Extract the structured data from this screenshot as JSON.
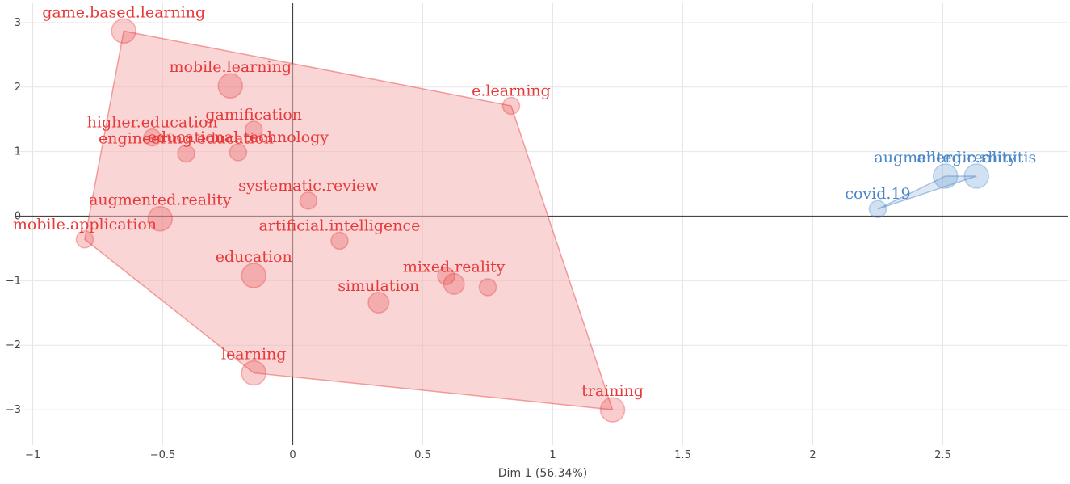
{
  "chart_data": {
    "type": "scatter",
    "xlabel": "Dim 1 (56.34%)",
    "ylabel": "",
    "xlim": [
      -1.07,
      2.98
    ],
    "ylim": [
      -3.55,
      3.3
    ],
    "x_ticks": [
      -1,
      -0.5,
      0,
      0.5,
      1,
      1.5,
      2,
      2.5
    ],
    "x_tick_labels": [
      "−1",
      "−0.5",
      "0",
      "0.5",
      "1",
      "1.5",
      "2",
      "2.5"
    ],
    "y_ticks": [
      -3,
      -2,
      -1,
      0,
      1,
      2,
      3
    ],
    "y_tick_labels": [
      "−3",
      "−2",
      "−1",
      "0",
      "1",
      "2",
      "3"
    ],
    "grid": true,
    "series": [
      {
        "color": "#e8393a",
        "fill": "#f4b3b3",
        "hull": [
          "game.based.learning",
          "e.learning",
          "training",
          "learning",
          "mobile.application"
        ],
        "points": [
          {
            "label": "game.based.learning",
            "x": -0.65,
            "y": 2.87,
            "size": 2
          },
          {
            "label": "mobile.learning",
            "x": -0.24,
            "y": 2.02,
            "size": 2
          },
          {
            "label": "e.learning",
            "x": 0.84,
            "y": 1.71,
            "size": 1
          },
          {
            "label": "higher.education",
            "x": -0.54,
            "y": 1.22,
            "size": 1
          },
          {
            "label": "gamification",
            "x": -0.15,
            "y": 1.34,
            "size": 1
          },
          {
            "label": "educational.technology",
            "x": -0.21,
            "y": 0.99,
            "size": 1
          },
          {
            "label": "engineering.education",
            "x": -0.41,
            "y": 0.97,
            "size": 1
          },
          {
            "label": "systematic.review",
            "x": 0.06,
            "y": 0.24,
            "size": 1
          },
          {
            "label": "augmented.reality",
            "x": -0.51,
            "y": -0.04,
            "size": 2
          },
          {
            "label": "mobile.application",
            "x": -0.8,
            "y": -0.36,
            "size": 1
          },
          {
            "label": "artificial.intelligence",
            "x": 0.18,
            "y": -0.38,
            "size": 1
          },
          {
            "label": "education",
            "x": -0.15,
            "y": -0.92,
            "size": 2
          },
          {
            "label": "mixed.reality",
            "x": 0.62,
            "y": -1.05,
            "size": 1.5
          },
          {
            "label": "simulation",
            "x": 0.33,
            "y": -1.34,
            "size": 1.5
          },
          {
            "label": "training",
            "x": 1.23,
            "y": -3.0,
            "size": 2
          },
          {
            "label": "learning",
            "x": -0.15,
            "y": -2.43,
            "size": 2
          }
        ],
        "extra_markers": [
          {
            "x": 0.59,
            "y": -0.93,
            "size": 1
          },
          {
            "x": 0.75,
            "y": -1.1,
            "size": 1
          }
        ]
      },
      {
        "color": "#4a86c8",
        "fill": "#c2d6ec",
        "hull": [
          "covid.19",
          "augmented.reality ",
          "allergic.rhinitis"
        ],
        "points": [
          {
            "label": "covid.19",
            "x": 2.25,
            "y": 0.11,
            "size": 1
          },
          {
            "label": "augmented.reality ",
            "x": 2.51,
            "y": 0.62,
            "size": 2
          },
          {
            "label": "allergic.rhinitis",
            "x": 2.63,
            "y": 0.62,
            "size": 2
          }
        ],
        "extra_markers": []
      }
    ]
  }
}
